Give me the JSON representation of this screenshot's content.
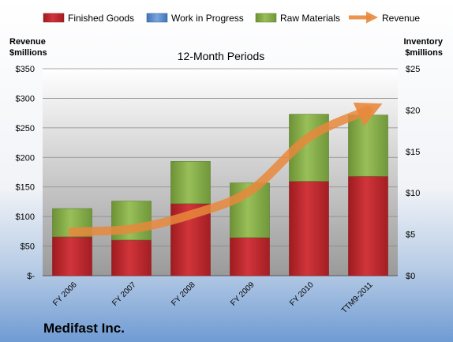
{
  "chart_data": {
    "type": "bar",
    "title": "12-Month Periods",
    "footer": "Medifast Inc.",
    "left_axis_label": [
      "Revenue",
      "$millions"
    ],
    "right_axis_label": [
      "Inventory",
      "$millions"
    ],
    "categories": [
      "FY 2006",
      "FY 2007",
      "FY 2008",
      "FY 2009",
      "FY 2010",
      "TTM9-2011"
    ],
    "left_ticks": [
      "$-",
      "$50",
      "$100",
      "$150",
      "$200",
      "$250",
      "$300",
      "$350"
    ],
    "right_ticks": [
      "$0",
      "$5",
      "$10",
      "$15",
      "$20",
      "$25"
    ],
    "left_ylim": [
      0,
      350
    ],
    "right_ylim": [
      0,
      25
    ],
    "stacked": true,
    "series": [
      {
        "name": "Finished Goods",
        "kind": "bar",
        "axis": "right",
        "color": "#c0272d",
        "values": [
          4.7,
          4.3,
          8.7,
          4.6,
          11.4,
          12.0
        ]
      },
      {
        "name": "Work in Progress",
        "kind": "bar",
        "axis": "right",
        "color": "#5b8fd0",
        "values": [
          0,
          0,
          0,
          0,
          0,
          0
        ]
      },
      {
        "name": "Raw Materials",
        "kind": "bar",
        "axis": "right",
        "color": "#8ab34a",
        "values": [
          3.4,
          4.7,
          5.1,
          6.6,
          8.1,
          7.4
        ]
      },
      {
        "name": "Revenue",
        "kind": "line",
        "axis": "left",
        "color": "#e8883c",
        "values": [
          74,
          79,
          103,
          143,
          234,
          280
        ]
      }
    ],
    "grid": true,
    "legend": "top"
  }
}
